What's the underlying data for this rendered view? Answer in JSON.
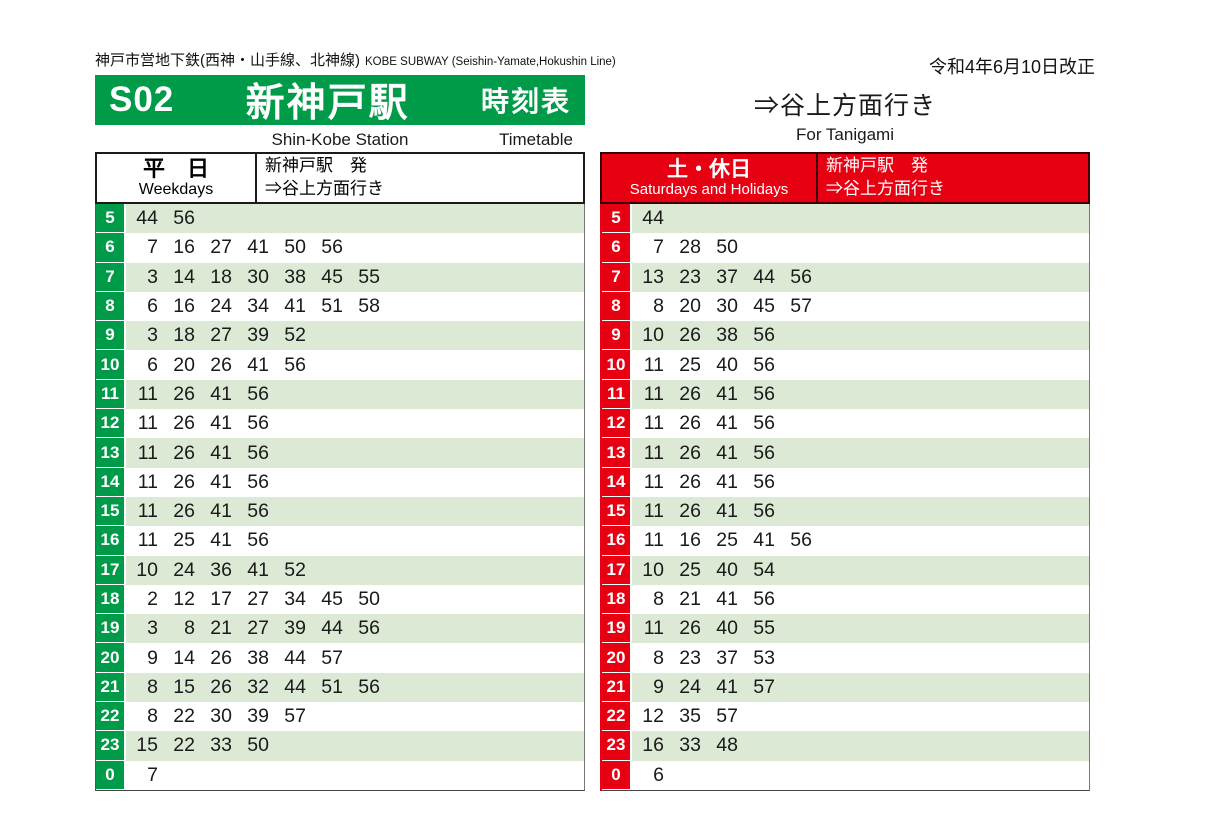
{
  "header": {
    "operator_jp": "神戸市営地下鉄(西神・山手線、北神線)",
    "operator_en": "KOBE SUBWAY (Seishin-Yamate,Hokushin Line)",
    "revision": "令和4年6月10日改正",
    "banner": {
      "station_code": "S02",
      "station_name_jp": "新神戸駅",
      "timetable_label_jp": "時刻表",
      "station_name_en": "Shin-Kobe Station",
      "timetable_label_en": "Timetable"
    },
    "direction_jp": "⇒谷上方面行き",
    "direction_en": "For Tanigami"
  },
  "colors": {
    "accent_green": "#009b48",
    "accent_red": "#e60012",
    "stripe_green": "#dcead5",
    "row_white": "#ffffff",
    "text": "#1a1a1a"
  },
  "tables": [
    {
      "name": "weekdays",
      "accent": "#009b48",
      "day_jp": "平　日",
      "day_en": "Weekdays",
      "from_jp": "新神戸駅　発",
      "to_jp": "⇒谷上方面行き",
      "rows": [
        {
          "hour": "5",
          "minutes": [
            "44",
            "56"
          ]
        },
        {
          "hour": "6",
          "minutes": [
            "7",
            "16",
            "27",
            "41",
            "50",
            "56"
          ]
        },
        {
          "hour": "7",
          "minutes": [
            "3",
            "14",
            "18",
            "30",
            "38",
            "45",
            "55"
          ]
        },
        {
          "hour": "8",
          "minutes": [
            "6",
            "16",
            "24",
            "34",
            "41",
            "51",
            "58"
          ]
        },
        {
          "hour": "9",
          "minutes": [
            "3",
            "18",
            "27",
            "39",
            "52"
          ]
        },
        {
          "hour": "10",
          "minutes": [
            "6",
            "20",
            "26",
            "41",
            "56"
          ]
        },
        {
          "hour": "11",
          "minutes": [
            "11",
            "26",
            "41",
            "56"
          ]
        },
        {
          "hour": "12",
          "minutes": [
            "11",
            "26",
            "41",
            "56"
          ]
        },
        {
          "hour": "13",
          "minutes": [
            "11",
            "26",
            "41",
            "56"
          ]
        },
        {
          "hour": "14",
          "minutes": [
            "11",
            "26",
            "41",
            "56"
          ]
        },
        {
          "hour": "15",
          "minutes": [
            "11",
            "26",
            "41",
            "56"
          ]
        },
        {
          "hour": "16",
          "minutes": [
            "11",
            "25",
            "41",
            "56"
          ]
        },
        {
          "hour": "17",
          "minutes": [
            "10",
            "24",
            "36",
            "41",
            "52"
          ]
        },
        {
          "hour": "18",
          "minutes": [
            "2",
            "12",
            "17",
            "27",
            "34",
            "45",
            "50"
          ]
        },
        {
          "hour": "19",
          "minutes": [
            "3",
            "8",
            "21",
            "27",
            "39",
            "44",
            "56"
          ]
        },
        {
          "hour": "20",
          "minutes": [
            "9",
            "14",
            "26",
            "38",
            "44",
            "57"
          ]
        },
        {
          "hour": "21",
          "minutes": [
            "8",
            "15",
            "26",
            "32",
            "44",
            "51",
            "56"
          ]
        },
        {
          "hour": "22",
          "minutes": [
            "8",
            "22",
            "30",
            "39",
            "57"
          ]
        },
        {
          "hour": "23",
          "minutes": [
            "15",
            "22",
            "33",
            "50"
          ]
        },
        {
          "hour": "0",
          "minutes": [
            "7"
          ]
        }
      ]
    },
    {
      "name": "saturdays-holidays",
      "accent": "#e60012",
      "day_jp": "土・休日",
      "day_en": "Saturdays and Holidays",
      "from_jp": "新神戸駅　発",
      "to_jp": "⇒谷上方面行き",
      "rows": [
        {
          "hour": "5",
          "minutes": [
            "44"
          ]
        },
        {
          "hour": "6",
          "minutes": [
            "7",
            "28",
            "50"
          ]
        },
        {
          "hour": "7",
          "minutes": [
            "13",
            "23",
            "37",
            "44",
            "56"
          ]
        },
        {
          "hour": "8",
          "minutes": [
            "8",
            "20",
            "30",
            "45",
            "57"
          ]
        },
        {
          "hour": "9",
          "minutes": [
            "10",
            "26",
            "38",
            "56"
          ]
        },
        {
          "hour": "10",
          "minutes": [
            "11",
            "25",
            "40",
            "56"
          ]
        },
        {
          "hour": "11",
          "minutes": [
            "11",
            "26",
            "41",
            "56"
          ]
        },
        {
          "hour": "12",
          "minutes": [
            "11",
            "26",
            "41",
            "56"
          ]
        },
        {
          "hour": "13",
          "minutes": [
            "11",
            "26",
            "41",
            "56"
          ]
        },
        {
          "hour": "14",
          "minutes": [
            "11",
            "26",
            "41",
            "56"
          ]
        },
        {
          "hour": "15",
          "minutes": [
            "11",
            "26",
            "41",
            "56"
          ]
        },
        {
          "hour": "16",
          "minutes": [
            "11",
            "16",
            "25",
            "41",
            "56"
          ]
        },
        {
          "hour": "17",
          "minutes": [
            "10",
            "25",
            "40",
            "54"
          ]
        },
        {
          "hour": "18",
          "minutes": [
            "8",
            "21",
            "41",
            "56"
          ]
        },
        {
          "hour": "19",
          "minutes": [
            "11",
            "26",
            "40",
            "55"
          ]
        },
        {
          "hour": "20",
          "minutes": [
            "8",
            "23",
            "37",
            "53"
          ]
        },
        {
          "hour": "21",
          "minutes": [
            "9",
            "24",
            "41",
            "57"
          ]
        },
        {
          "hour": "22",
          "minutes": [
            "12",
            "35",
            "57"
          ]
        },
        {
          "hour": "23",
          "minutes": [
            "16",
            "33",
            "48"
          ]
        },
        {
          "hour": "0",
          "minutes": [
            "6"
          ]
        }
      ]
    }
  ]
}
